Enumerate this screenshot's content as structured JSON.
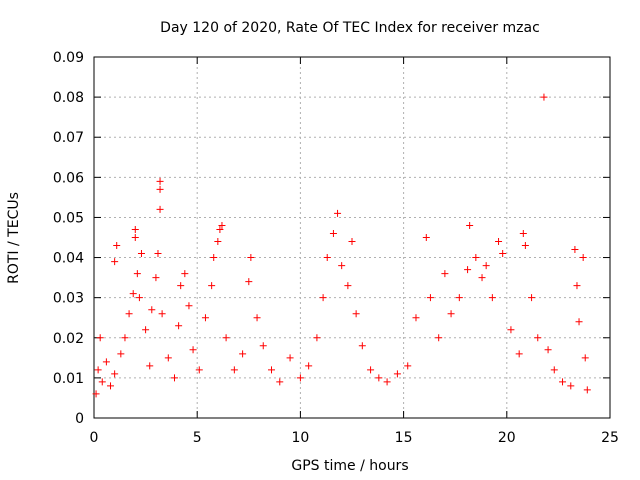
{
  "chart_data": {
    "type": "scatter",
    "title": "Day 120 of 2020, Rate Of TEC Index for receiver mzac",
    "xlabel": "GPS time / hours",
    "ylabel": "ROTI / TECUs",
    "xlim": [
      0,
      25
    ],
    "ylim": [
      0,
      0.09
    ],
    "x_ticks": [
      "0",
      "5",
      "10",
      "15",
      "20",
      "25"
    ],
    "y_ticks": [
      "0",
      "0.01",
      "0.02",
      "0.03",
      "0.04",
      "0.05",
      "0.06",
      "0.07",
      "0.08",
      "0.09"
    ],
    "grid": true,
    "marker": "plus",
    "color": "#ff0000",
    "series": [
      {
        "points": [
          [
            0.1,
            0.006
          ],
          [
            0.2,
            0.012
          ],
          [
            0.3,
            0.02
          ],
          [
            0.4,
            0.009
          ],
          [
            0.6,
            0.014
          ],
          [
            0.8,
            0.008
          ],
          [
            1.0,
            0.011
          ],
          [
            1.0,
            0.039
          ],
          [
            1.1,
            0.043
          ],
          [
            1.3,
            0.016
          ],
          [
            1.5,
            0.02
          ],
          [
            1.7,
            0.026
          ],
          [
            1.9,
            0.031
          ],
          [
            2.0,
            0.045
          ],
          [
            2.0,
            0.047
          ],
          [
            2.1,
            0.036
          ],
          [
            2.2,
            0.03
          ],
          [
            2.3,
            0.041
          ],
          [
            2.5,
            0.022
          ],
          [
            2.7,
            0.013
          ],
          [
            2.8,
            0.027
          ],
          [
            3.0,
            0.035
          ],
          [
            3.1,
            0.041
          ],
          [
            3.2,
            0.059
          ],
          [
            3.2,
            0.057
          ],
          [
            3.2,
            0.052
          ],
          [
            3.3,
            0.026
          ],
          [
            3.6,
            0.015
          ],
          [
            3.9,
            0.01
          ],
          [
            4.1,
            0.023
          ],
          [
            4.2,
            0.033
          ],
          [
            4.4,
            0.036
          ],
          [
            4.6,
            0.028
          ],
          [
            4.8,
            0.017
          ],
          [
            5.1,
            0.012
          ],
          [
            5.4,
            0.025
          ],
          [
            5.7,
            0.033
          ],
          [
            5.8,
            0.04
          ],
          [
            6.0,
            0.044
          ],
          [
            6.1,
            0.047
          ],
          [
            6.2,
            0.048
          ],
          [
            6.4,
            0.02
          ],
          [
            6.8,
            0.012
          ],
          [
            7.2,
            0.016
          ],
          [
            7.5,
            0.034
          ],
          [
            7.6,
            0.04
          ],
          [
            7.9,
            0.025
          ],
          [
            8.2,
            0.018
          ],
          [
            8.6,
            0.012
          ],
          [
            9.0,
            0.009
          ],
          [
            9.5,
            0.015
          ],
          [
            10.0,
            0.01
          ],
          [
            10.4,
            0.013
          ],
          [
            10.8,
            0.02
          ],
          [
            11.1,
            0.03
          ],
          [
            11.3,
            0.04
          ],
          [
            11.6,
            0.046
          ],
          [
            11.8,
            0.051
          ],
          [
            12.0,
            0.038
          ],
          [
            12.3,
            0.033
          ],
          [
            12.5,
            0.044
          ],
          [
            12.7,
            0.026
          ],
          [
            13.0,
            0.018
          ],
          [
            13.4,
            0.012
          ],
          [
            13.8,
            0.01
          ],
          [
            14.2,
            0.009
          ],
          [
            14.7,
            0.011
          ],
          [
            15.2,
            0.013
          ],
          [
            15.6,
            0.025
          ],
          [
            16.1,
            0.045
          ],
          [
            16.3,
            0.03
          ],
          [
            16.7,
            0.02
          ],
          [
            17.0,
            0.036
          ],
          [
            17.3,
            0.026
          ],
          [
            17.7,
            0.03
          ],
          [
            18.1,
            0.037
          ],
          [
            18.2,
            0.048
          ],
          [
            18.5,
            0.04
          ],
          [
            18.8,
            0.035
          ],
          [
            19.0,
            0.038
          ],
          [
            19.3,
            0.03
          ],
          [
            19.6,
            0.044
          ],
          [
            19.8,
            0.041
          ],
          [
            20.2,
            0.022
          ],
          [
            20.6,
            0.016
          ],
          [
            20.8,
            0.046
          ],
          [
            20.9,
            0.043
          ],
          [
            21.2,
            0.03
          ],
          [
            21.5,
            0.02
          ],
          [
            21.8,
            0.08
          ],
          [
            22.0,
            0.017
          ],
          [
            22.3,
            0.012
          ],
          [
            22.7,
            0.009
          ],
          [
            23.1,
            0.008
          ],
          [
            23.3,
            0.042
          ],
          [
            23.4,
            0.033
          ],
          [
            23.5,
            0.024
          ],
          [
            23.7,
            0.04
          ],
          [
            23.8,
            0.015
          ],
          [
            23.9,
            0.007
          ]
        ]
      }
    ]
  }
}
